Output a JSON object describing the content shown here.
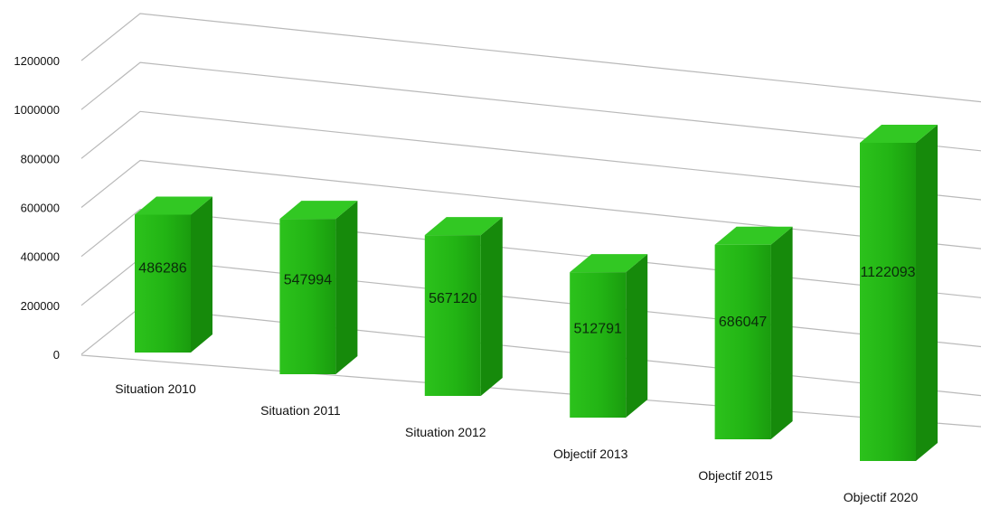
{
  "chart_data": {
    "type": "bar",
    "categories": [
      "Situation 2010",
      "Situation 2011",
      "Situation 2012",
      "Objectif 2013",
      "Objectif 2015",
      "Objectif 2020"
    ],
    "values": [
      486286,
      547994,
      567120,
      512791,
      686047,
      1122093
    ],
    "y_ticks": [
      "0",
      "200000",
      "400000",
      "600000",
      "800000",
      "1000000",
      "1200000"
    ],
    "ylim": [
      0,
      1200000
    ],
    "grid": true,
    "style": "3d-perspective",
    "bar_color": "#22b114"
  }
}
